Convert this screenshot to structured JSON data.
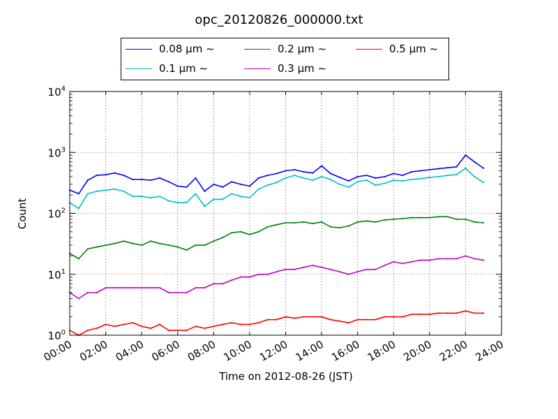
{
  "chart_data": {
    "type": "line",
    "title": "opc_20120826_000000.txt",
    "xlabel": "Time on 2012-08-26 (JST)",
    "ylabel": "Count",
    "yscale": "log",
    "xlim": [
      "00:00",
      "24:00"
    ],
    "ylim": [
      1,
      10000
    ],
    "x_tick_labels": [
      "00:00",
      "02:00",
      "04:00",
      "06:00",
      "08:00",
      "10:00",
      "12:00",
      "14:00",
      "16:00",
      "18:00",
      "20:00",
      "22:00",
      "24:00"
    ],
    "y_tick_labels": [
      {
        "base": "10",
        "exp": "0"
      },
      {
        "base": "10",
        "exp": "1"
      },
      {
        "base": "10",
        "exp": "2"
      },
      {
        "base": "10",
        "exp": "3"
      },
      {
        "base": "10",
        "exp": "4"
      }
    ],
    "grid": true,
    "legend_position": "top-center",
    "x_hours": [
      0,
      0.5,
      1,
      1.5,
      2,
      2.5,
      3,
      3.5,
      4,
      4.5,
      5,
      5.5,
      6,
      6.5,
      7,
      7.5,
      8,
      8.5,
      9,
      9.5,
      10,
      10.5,
      11,
      11.5,
      12,
      12.5,
      13,
      13.5,
      14,
      14.5,
      15,
      15.5,
      16,
      16.5,
      17,
      17.5,
      18,
      18.5,
      19,
      19.5,
      20,
      20.5,
      21,
      21.5,
      22,
      22.5,
      23
    ],
    "series": [
      {
        "name": "0.08 μm ~",
        "color": "#0000ff",
        "values": [
          240,
          210,
          350,
          420,
          430,
          460,
          420,
          360,
          360,
          350,
          380,
          330,
          280,
          270,
          380,
          230,
          300,
          270,
          330,
          300,
          280,
          380,
          420,
          450,
          500,
          520,
          480,
          460,
          600,
          450,
          390,
          340,
          400,
          420,
          380,
          400,
          450,
          420,
          480,
          500,
          520,
          540,
          560,
          580,
          900,
          700,
          550
        ]
      },
      {
        "name": "0.1 μm ~",
        "color": "#00bfbf",
        "values": [
          150,
          120,
          210,
          230,
          240,
          250,
          230,
          190,
          190,
          180,
          190,
          160,
          150,
          150,
          210,
          130,
          170,
          170,
          210,
          190,
          180,
          250,
          290,
          320,
          380,
          420,
          380,
          350,
          400,
          360,
          300,
          270,
          330,
          350,
          290,
          310,
          350,
          340,
          360,
          370,
          390,
          400,
          420,
          430,
          550,
          400,
          320
        ]
      },
      {
        "name": "0.2 μm ~",
        "color": "#008000",
        "values": [
          22,
          18,
          26,
          28,
          30,
          32,
          35,
          32,
          30,
          35,
          32,
          30,
          28,
          25,
          30,
          30,
          35,
          40,
          48,
          50,
          45,
          50,
          60,
          65,
          70,
          70,
          72,
          68,
          72,
          60,
          58,
          62,
          72,
          75,
          72,
          78,
          80,
          82,
          85,
          85,
          85,
          88,
          88,
          80,
          80,
          72,
          70
        ]
      },
      {
        "name": "0.3 μm ~",
        "color": "#bf00bf",
        "values": [
          5,
          4,
          5,
          5,
          6,
          6,
          6,
          6,
          6,
          6,
          6,
          5,
          5,
          5,
          6,
          6,
          7,
          7,
          8,
          9,
          9,
          10,
          10,
          11,
          12,
          12,
          13,
          14,
          13,
          12,
          11,
          10,
          11,
          12,
          12,
          14,
          16,
          15,
          16,
          17,
          17,
          18,
          18,
          18,
          20,
          18,
          17
        ]
      },
      {
        "name": "0.5 μm ~",
        "color": "#ff0000",
        "values": [
          1.2,
          1,
          1.2,
          1.3,
          1.5,
          1.4,
          1.5,
          1.6,
          1.4,
          1.3,
          1.5,
          1.2,
          1.2,
          1.2,
          1.4,
          1.3,
          1.4,
          1.5,
          1.6,
          1.5,
          1.5,
          1.6,
          1.8,
          1.8,
          2,
          1.9,
          2,
          2,
          2,
          1.8,
          1.7,
          1.6,
          1.8,
          1.8,
          1.8,
          2,
          2,
          2,
          2.2,
          2.2,
          2.2,
          2.3,
          2.3,
          2.3,
          2.5,
          2.3,
          2.3
        ]
      }
    ]
  },
  "colors": {
    "axes": "#000000",
    "grid": "#000000",
    "background": "#ffffff"
  }
}
